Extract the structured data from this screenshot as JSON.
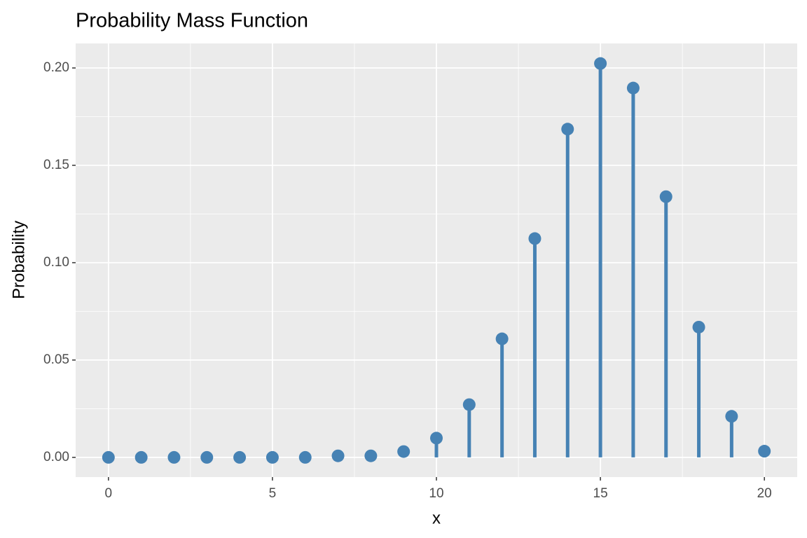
{
  "chart_data": {
    "type": "lollipop",
    "title": "Probability Mass Function",
    "x_label": "x",
    "y_label": "Probability",
    "x": [
      0,
      1,
      2,
      3,
      4,
      5,
      6,
      7,
      8,
      9,
      10,
      11,
      12,
      13,
      14,
      15,
      16,
      17,
      18,
      19,
      20
    ],
    "values": [
      0,
      0,
      0,
      0,
      0,
      0,
      0,
      0.0008,
      0.0008,
      0.003,
      0.0099,
      0.0271,
      0.0609,
      0.1124,
      0.1686,
      0.2023,
      0.1897,
      0.1339,
      0.0669,
      0.0211,
      0.0032
    ],
    "color": "#4682b4",
    "xlim": [
      -1,
      21
    ],
    "ylim": [
      -0.0101,
      0.2126
    ],
    "xticks": [
      0,
      5,
      10,
      15,
      20
    ],
    "yticks": [
      {
        "value": 0,
        "label": "0.00"
      },
      {
        "value": 0.05,
        "label": "0.05"
      },
      {
        "value": 0.1,
        "label": "0.10"
      },
      {
        "value": 0.15,
        "label": "0.15"
      },
      {
        "value": 0.2,
        "label": "0.20"
      }
    ],
    "grid": true
  }
}
